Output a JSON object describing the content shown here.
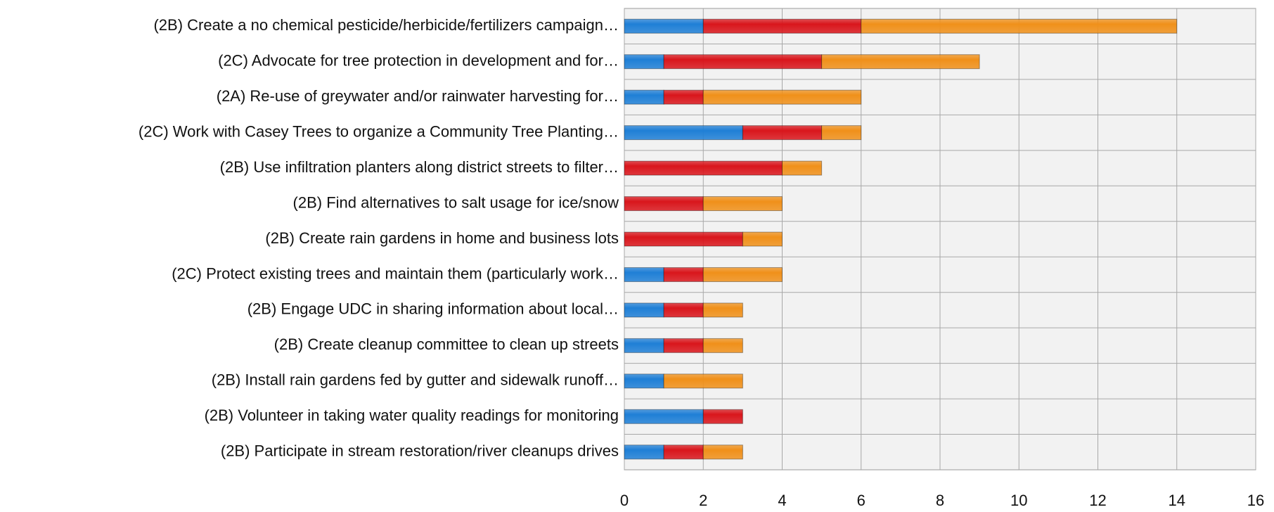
{
  "chart_data": {
    "type": "stacked-bar-horizontal",
    "categories": [
      "(2B) Create a no chemical pesticide/herbicide/fertilizers campaign…",
      "(2C) Advocate for tree protection in development and for…",
      "(2A) Re-use of greywater and/or rainwater harvesting for…",
      "(2C) Work with Casey Trees to organize a Community Tree Planting…",
      "(2B) Use infiltration planters along district streets to filter…",
      "(2B) Find alternatives to salt usage for ice/snow",
      "(2B) Create rain gardens in home and business lots",
      "(2C) Protect existing trees and maintain them (particularly work…",
      "(2B) Engage UDC in sharing information about local…",
      "(2B) Create cleanup committee to clean up streets",
      "(2B) Install rain gardens fed by gutter and sidewalk runoff…",
      "(2B) Volunteer in taking water quality readings for monitoring",
      "(2B) Participate in stream restoration/river cleanups drives"
    ],
    "series": [
      {
        "color": "#1f7fd6",
        "values": [
          2,
          1,
          1,
          3,
          0,
          0,
          0,
          1,
          1,
          1,
          1,
          2,
          1
        ]
      },
      {
        "color": "#d9161c",
        "values": [
          4,
          4,
          1,
          2,
          4,
          2,
          3,
          1,
          1,
          1,
          0,
          1,
          1
        ]
      },
      {
        "color": "#f0901a",
        "values": [
          8,
          4,
          4,
          1,
          1,
          2,
          1,
          2,
          1,
          1,
          2,
          0,
          1
        ]
      }
    ],
    "xlim": [
      0,
      16
    ],
    "xticks": [
      0,
      2,
      4,
      6,
      8,
      10,
      12,
      14,
      16
    ],
    "grid": true
  }
}
